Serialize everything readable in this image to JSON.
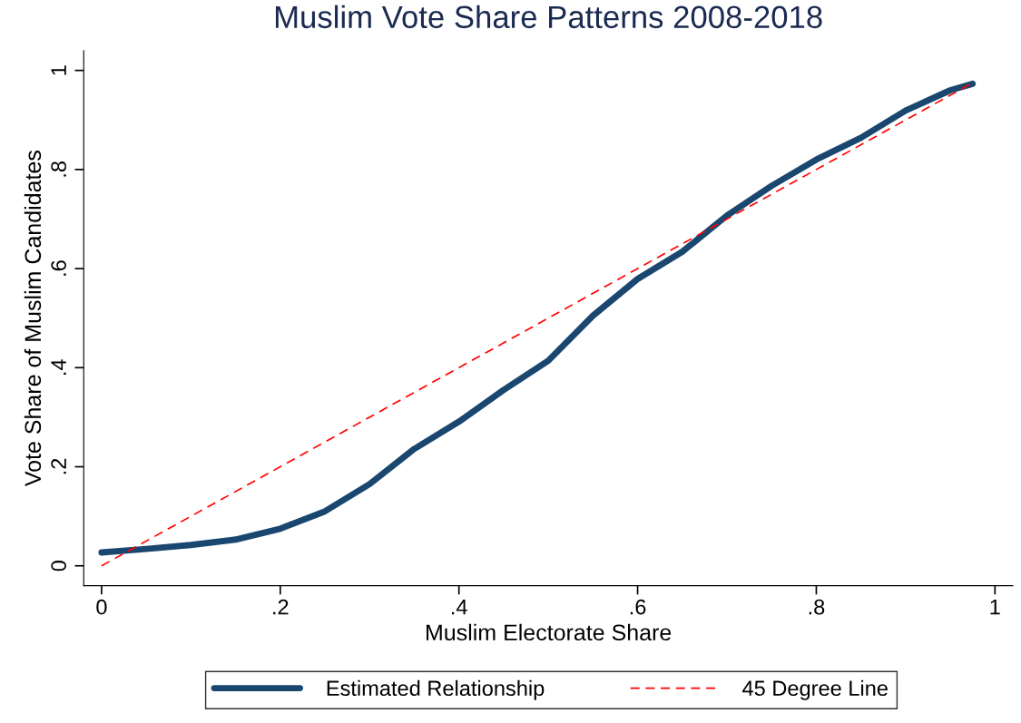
{
  "chart_data": {
    "type": "line",
    "title": "Muslim Vote Share Patterns 2008-2018",
    "xlabel": "Muslim Electorate Share",
    "ylabel": "Vote Share of Muslim Candidates",
    "series": [
      {
        "name": "Estimated Relationship",
        "color": "#1a476f",
        "line_style": "solid",
        "x": [
          0,
          0.05,
          0.1,
          0.15,
          0.2,
          0.25,
          0.3,
          0.35,
          0.4,
          0.45,
          0.5,
          0.55,
          0.6,
          0.65,
          0.7,
          0.75,
          0.8,
          0.85,
          0.9,
          0.95,
          0.975
        ],
        "values": [
          0.027,
          0.034,
          0.042,
          0.053,
          0.075,
          0.11,
          0.165,
          0.236,
          0.291,
          0.355,
          0.414,
          0.505,
          0.579,
          0.634,
          0.707,
          0.767,
          0.82,
          0.864,
          0.919,
          0.96,
          0.973
        ]
      },
      {
        "name": "45 Degree Line",
        "color": "#ff0000",
        "line_style": "dashed",
        "x": [
          0,
          0.975
        ],
        "values": [
          0,
          0.975
        ]
      }
    ],
    "xlim": [
      -0.02,
      1.02
    ],
    "ylim": [
      -0.04,
      1.04
    ],
    "xticks": [
      0,
      {
        "value": 0.2,
        "label": ".2"
      },
      {
        "value": 0.4,
        "label": ".4"
      },
      {
        "value": 0.6,
        "label": ".6"
      },
      {
        "value": 0.8,
        "label": ".8"
      },
      1
    ],
    "yticks": [
      0,
      {
        "value": 0.2,
        "label": ".2"
      },
      {
        "value": 0.4,
        "label": ".4"
      },
      {
        "value": 0.6,
        "label": ".6"
      },
      {
        "value": 0.8,
        "label": ".8"
      },
      1
    ],
    "grid": false,
    "legend": "bottom",
    "marker": "none"
  }
}
